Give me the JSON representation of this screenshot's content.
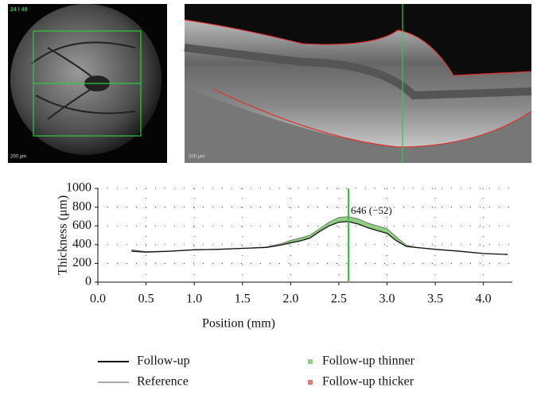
{
  "images": {
    "fundus_label": "24 / 49",
    "scale_left": "200 μm",
    "scale_right": "200 μm"
  },
  "chart_data": {
    "type": "line",
    "x_label": "Position (mm)",
    "y_label": "Thickness (μm)",
    "annotation": "646 (−52)",
    "marker_x": 2.6,
    "marker_color": "#3cbf3c",
    "x": [
      0.35,
      0.5,
      0.75,
      1.0,
      1.25,
      1.5,
      1.75,
      1.9,
      2.0,
      2.1,
      2.2,
      2.3,
      2.4,
      2.5,
      2.6,
      2.7,
      2.8,
      2.9,
      3.0,
      3.1,
      3.2,
      3.3,
      3.5,
      3.75,
      4.0,
      4.25
    ],
    "series": [
      {
        "name": "Follow-up",
        "color": "#111111",
        "values": [
          330,
          320,
          330,
          345,
          350,
          360,
          370,
          395,
          420,
          440,
          470,
          540,
          600,
          640,
          646,
          620,
          580,
          550,
          520,
          440,
          380,
          370,
          350,
          330,
          305,
          295
        ]
      },
      {
        "name": "Reference",
        "color": "#777777",
        "values": [
          345,
          325,
          330,
          345,
          350,
          360,
          375,
          410,
          445,
          470,
          500,
          570,
          640,
          690,
          698,
          675,
          630,
          600,
          570,
          480,
          395,
          372,
          350,
          330,
          305,
          295
        ]
      }
    ],
    "difference_legend": [
      {
        "name": "Follow-up thinner",
        "color": "#8fd080"
      },
      {
        "name": "Follow-up thicker",
        "color": "#e07a7a"
      }
    ],
    "xlim": [
      0,
      4.3
    ],
    "ylim": [
      0,
      1000
    ],
    "xticks": [
      {
        "value": 0,
        "label": "0.0"
      },
      0.5,
      {
        "value": 1,
        "label": "1.0"
      },
      1.5,
      {
        "value": 2,
        "label": "2.0"
      },
      2.5,
      {
        "value": 3,
        "label": "3.0"
      },
      3.5,
      {
        "value": 4,
        "label": "4.0"
      }
    ],
    "yticks": [
      0,
      200,
      400,
      600,
      800,
      1000
    ],
    "grid": true
  }
}
